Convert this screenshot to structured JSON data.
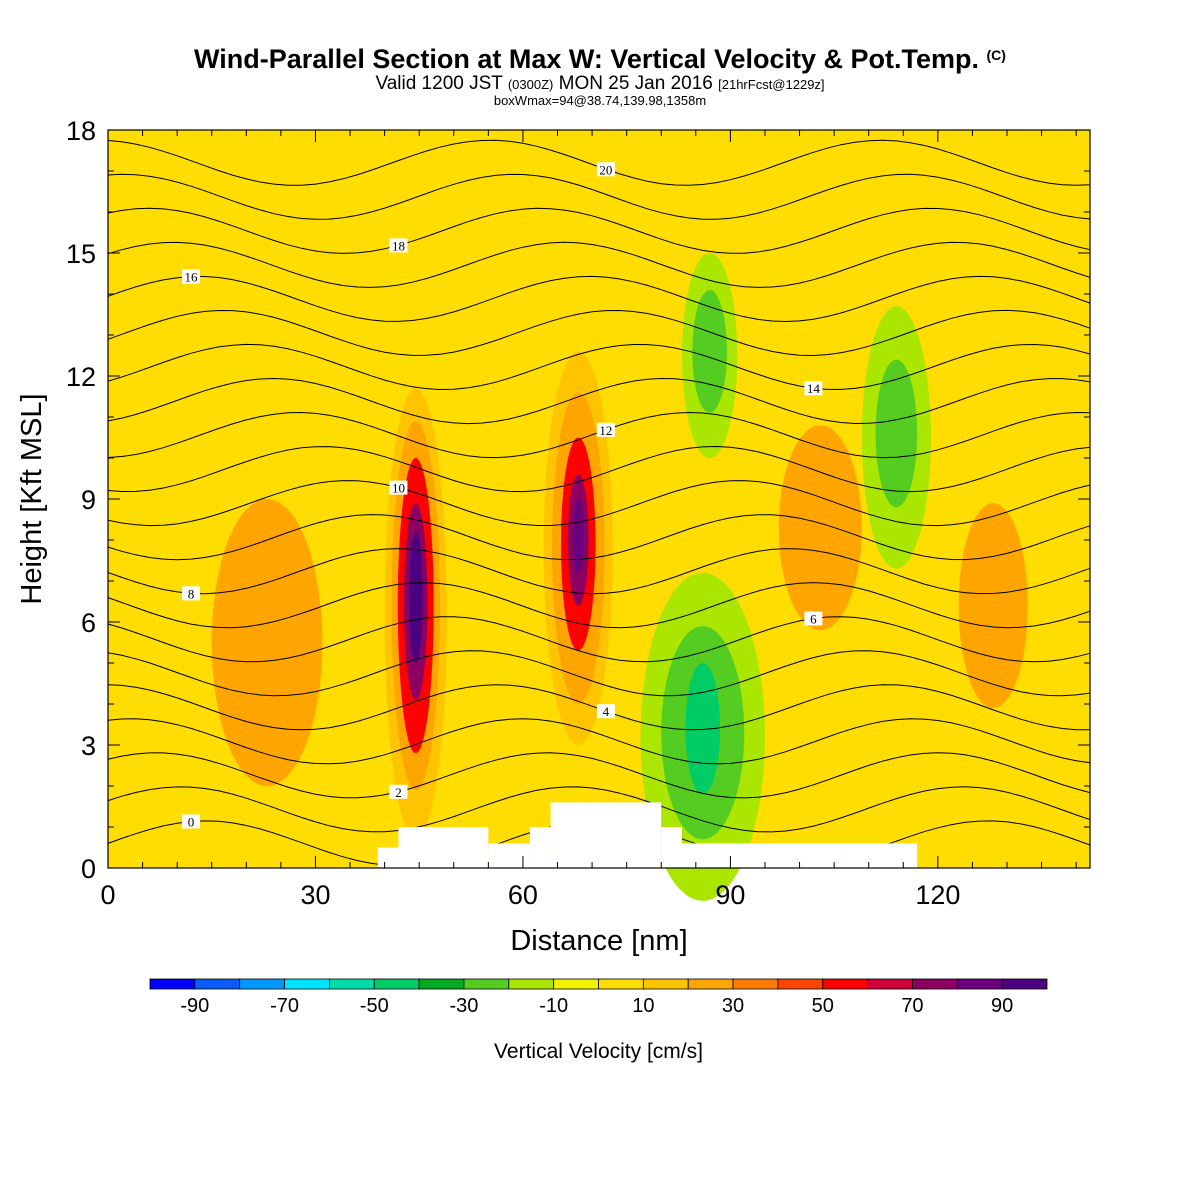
{
  "header": {
    "title": "Wind-Parallel Section at Max W: Vertical Velocity & Pot.Temp.",
    "copyright": "(C)",
    "valid_main": "Valid 1200 JST",
    "valid_utc": "(0300Z)",
    "valid_date": "MON 25 Jan 2016",
    "forecast": "[21hrFcst@1229z]",
    "box_info": "boxWmax=94@38.74,139.98,1358m"
  },
  "chart_data": {
    "type": "heatmap",
    "xlabel": "Distance [nm]",
    "ylabel": "Height [Kft MSL]",
    "xlim": [
      0,
      142
    ],
    "ylim": [
      0,
      18
    ],
    "x_ticks": [
      0,
      30,
      60,
      90,
      120
    ],
    "y_ticks": [
      0,
      3,
      6,
      9,
      12,
      15,
      18
    ],
    "colorbar": {
      "label": "Vertical Velocity [cm/s]",
      "levels": [
        -100,
        -90,
        -80,
        -70,
        -60,
        -50,
        -40,
        -30,
        -20,
        -10,
        0,
        10,
        20,
        30,
        40,
        50,
        60,
        70,
        80,
        90,
        100
      ],
      "tick_labels": [
        "-90",
        "-70",
        "-50",
        "-30",
        "-10",
        "10",
        "30",
        "50",
        "70",
        "90"
      ],
      "colors": [
        "#0000ff",
        "#0a5cff",
        "#0099ff",
        "#00e5ff",
        "#00ddaa",
        "#00cc66",
        "#00aa22",
        "#55cc22",
        "#aae600",
        "#f2f200",
        "#ffdd00",
        "#ffc400",
        "#ffa500",
        "#ff7a00",
        "#ff4400",
        "#ff0000",
        "#d0003a",
        "#8b0060",
        "#6a0080",
        "#4b0082"
      ]
    },
    "cells": [
      {
        "x": 44.5,
        "y": 6.2,
        "rx": 4.5,
        "ry": 5.5,
        "w": 12
      },
      {
        "x": 44.5,
        "y": 6.4,
        "rx": 3.5,
        "ry": 4.5,
        "w": 20
      },
      {
        "x": 44.5,
        "y": 6.4,
        "rx": 2.6,
        "ry": 3.6,
        "w": 50
      },
      {
        "x": 44.5,
        "y": 6.5,
        "rx": 1.7,
        "ry": 2.4,
        "w": 75
      },
      {
        "x": 44.5,
        "y": 6.6,
        "rx": 1.0,
        "ry": 1.6,
        "w": 90
      },
      {
        "x": 68,
        "y": 7.8,
        "rx": 5,
        "ry": 4.8,
        "w": 12
      },
      {
        "x": 68,
        "y": 7.8,
        "rx": 3.8,
        "ry": 3.8,
        "w": 20
      },
      {
        "x": 68,
        "y": 7.9,
        "rx": 2.5,
        "ry": 2.6,
        "w": 50
      },
      {
        "x": 68,
        "y": 8.0,
        "rx": 1.5,
        "ry": 1.6,
        "w": 75
      },
      {
        "x": 68,
        "y": 8.1,
        "rx": 0.8,
        "ry": 0.9,
        "w": 85
      },
      {
        "x": 86,
        "y": 3.2,
        "rx": 9,
        "ry": 4,
        "w": -15
      },
      {
        "x": 86,
        "y": 3.3,
        "rx": 6,
        "ry": 2.6,
        "w": -30
      },
      {
        "x": 86,
        "y": 3.4,
        "rx": 2.5,
        "ry": 1.6,
        "w": -50
      },
      {
        "x": 87,
        "y": 12.5,
        "rx": 4,
        "ry": 2.5,
        "w": -15
      },
      {
        "x": 87,
        "y": 12.6,
        "rx": 2.5,
        "ry": 1.5,
        "w": -30
      },
      {
        "x": 114,
        "y": 10.5,
        "rx": 5,
        "ry": 3.2,
        "w": -15
      },
      {
        "x": 114,
        "y": 10.6,
        "rx": 3,
        "ry": 1.8,
        "w": -30
      },
      {
        "x": 23,
        "y": 5.5,
        "rx": 8,
        "ry": 3.5,
        "w": 20
      },
      {
        "x": 103,
        "y": 8.3,
        "rx": 6,
        "ry": 2.5,
        "w": 20
      },
      {
        "x": 128,
        "y": 6.4,
        "rx": 5,
        "ry": 2.5,
        "w": 20
      }
    ],
    "isentropes": {
      "interval": 1,
      "labeled_values": [
        0,
        2,
        4,
        6,
        8,
        10,
        12,
        14,
        16,
        18,
        20
      ]
    },
    "terrain": [
      [
        39,
        0.5
      ],
      [
        42,
        1.0
      ],
      [
        55,
        0.6
      ],
      [
        61,
        1.0
      ],
      [
        64,
        1.6
      ],
      [
        77,
        1.6
      ],
      [
        80,
        1.0
      ],
      [
        83,
        0.6
      ],
      [
        107,
        0.6
      ],
      [
        117,
        0.6
      ]
    ]
  }
}
